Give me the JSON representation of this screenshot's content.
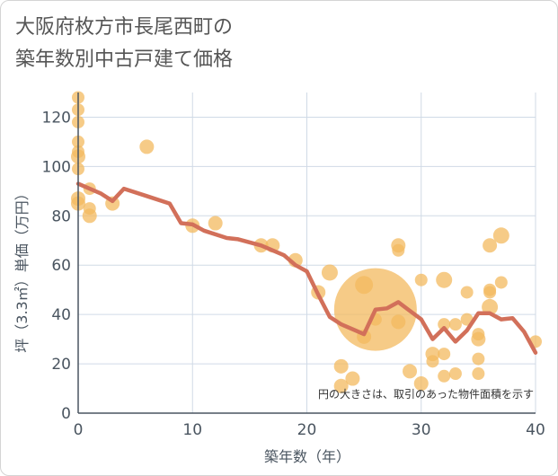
{
  "chart_data": {
    "type": "scatter",
    "title_lines": [
      "大阪府枚方市長尾西町の",
      "築年数別中古戸建て価格"
    ],
    "xlabel": "築年数（年）",
    "ylabel": "坪（3.3㎡）単価（万円）",
    "xlim": [
      0,
      40
    ],
    "ylim": [
      0,
      130
    ],
    "x_ticks": [
      0,
      10,
      20,
      30,
      40
    ],
    "y_ticks": [
      0,
      20,
      40,
      60,
      80,
      100,
      120
    ],
    "grid": true,
    "note": "円の大きさは、取引のあった物件面積を示す",
    "colors": {
      "bubble": "#f3b95f",
      "line": "#d2705a",
      "grid": "#d0dae6",
      "axis": "#4a5560"
    },
    "bubbles": [
      {
        "x": 0,
        "y": 128,
        "s": 7
      },
      {
        "x": 0,
        "y": 123,
        "s": 7
      },
      {
        "x": 0,
        "y": 118,
        "s": 7
      },
      {
        "x": 0,
        "y": 110,
        "s": 7
      },
      {
        "x": 0,
        "y": 106,
        "s": 7
      },
      {
        "x": 0,
        "y": 104,
        "s": 8
      },
      {
        "x": 0,
        "y": 99,
        "s": 7
      },
      {
        "x": 0,
        "y": 87,
        "s": 8
      },
      {
        "x": 0,
        "y": 85,
        "s": 8
      },
      {
        "x": 1,
        "y": 91,
        "s": 7
      },
      {
        "x": 1,
        "y": 83,
        "s": 7
      },
      {
        "x": 1,
        "y": 80,
        "s": 8
      },
      {
        "x": 3,
        "y": 85,
        "s": 8
      },
      {
        "x": 6,
        "y": 108,
        "s": 8
      },
      {
        "x": 10,
        "y": 76,
        "s": 8
      },
      {
        "x": 12,
        "y": 77,
        "s": 8
      },
      {
        "x": 16,
        "y": 68,
        "s": 8
      },
      {
        "x": 17,
        "y": 68,
        "s": 8
      },
      {
        "x": 19,
        "y": 62,
        "s": 8
      },
      {
        "x": 21,
        "y": 49,
        "s": 8
      },
      {
        "x": 22,
        "y": 57,
        "s": 9
      },
      {
        "x": 23,
        "y": 19,
        "s": 8
      },
      {
        "x": 23,
        "y": 11,
        "s": 8
      },
      {
        "x": 24,
        "y": 14,
        "s": 8
      },
      {
        "x": 25,
        "y": 52,
        "s": 10
      },
      {
        "x": 25,
        "y": 31,
        "s": 8
      },
      {
        "x": 26,
        "y": 42,
        "s": 46
      },
      {
        "x": 26,
        "y": 38,
        "s": 7
      },
      {
        "x": 28,
        "y": 68,
        "s": 8
      },
      {
        "x": 28,
        "y": 66,
        "s": 7
      },
      {
        "x": 28,
        "y": 37,
        "s": 8
      },
      {
        "x": 29,
        "y": 17,
        "s": 8
      },
      {
        "x": 30,
        "y": 54,
        "s": 7
      },
      {
        "x": 30,
        "y": 12,
        "s": 8
      },
      {
        "x": 31,
        "y": 24,
        "s": 8
      },
      {
        "x": 31,
        "y": 21,
        "s": 7
      },
      {
        "x": 32,
        "y": 54,
        "s": 9
      },
      {
        "x": 32,
        "y": 36,
        "s": 7
      },
      {
        "x": 32,
        "y": 24,
        "s": 7
      },
      {
        "x": 32,
        "y": 15,
        "s": 7
      },
      {
        "x": 33,
        "y": 36,
        "s": 7
      },
      {
        "x": 33,
        "y": 16,
        "s": 7
      },
      {
        "x": 34,
        "y": 49,
        "s": 7
      },
      {
        "x": 34,
        "y": 38,
        "s": 7
      },
      {
        "x": 35,
        "y": 32,
        "s": 7
      },
      {
        "x": 35,
        "y": 30,
        "s": 8
      },
      {
        "x": 35,
        "y": 22,
        "s": 7
      },
      {
        "x": 35,
        "y": 16,
        "s": 7
      },
      {
        "x": 36,
        "y": 68,
        "s": 8
      },
      {
        "x": 36,
        "y": 50,
        "s": 7
      },
      {
        "x": 36,
        "y": 49,
        "s": 7
      },
      {
        "x": 36,
        "y": 43,
        "s": 9
      },
      {
        "x": 37,
        "y": 72,
        "s": 9
      },
      {
        "x": 37,
        "y": 53,
        "s": 7
      },
      {
        "x": 40,
        "y": 29,
        "s": 7
      }
    ],
    "trend_line": [
      {
        "x": 0,
        "y": 93
      },
      {
        "x": 2,
        "y": 89
      },
      {
        "x": 3,
        "y": 86
      },
      {
        "x": 4,
        "y": 91
      },
      {
        "x": 6,
        "y": 88
      },
      {
        "x": 8,
        "y": 85
      },
      {
        "x": 9,
        "y": 77
      },
      {
        "x": 10,
        "y": 76.5
      },
      {
        "x": 11,
        "y": 74
      },
      {
        "x": 13,
        "y": 71
      },
      {
        "x": 14,
        "y": 70.5
      },
      {
        "x": 16,
        "y": 68
      },
      {
        "x": 18,
        "y": 64
      },
      {
        "x": 19,
        "y": 60
      },
      {
        "x": 20,
        "y": 57.5
      },
      {
        "x": 21,
        "y": 48
      },
      {
        "x": 22,
        "y": 39
      },
      {
        "x": 23,
        "y": 36
      },
      {
        "x": 24,
        "y": 34
      },
      {
        "x": 25,
        "y": 32
      },
      {
        "x": 26,
        "y": 42
      },
      {
        "x": 27,
        "y": 42.5
      },
      {
        "x": 28,
        "y": 45
      },
      {
        "x": 29,
        "y": 41.5
      },
      {
        "x": 30,
        "y": 38
      },
      {
        "x": 31,
        "y": 30
      },
      {
        "x": 32,
        "y": 34.5
      },
      {
        "x": 33,
        "y": 29
      },
      {
        "x": 34,
        "y": 33.5
      },
      {
        "x": 35,
        "y": 40.5
      },
      {
        "x": 36,
        "y": 40.5
      },
      {
        "x": 37,
        "y": 38
      },
      {
        "x": 38,
        "y": 38.5
      },
      {
        "x": 39,
        "y": 33
      },
      {
        "x": 40,
        "y": 24.5
      }
    ]
  }
}
